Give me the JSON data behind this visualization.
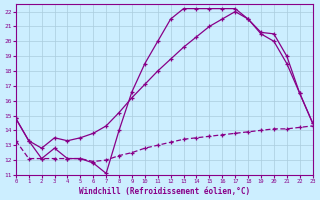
{
  "xlabel": "Windchill (Refroidissement éolien,°C)",
  "bg_color": "#cceeff",
  "grid_color": "#aaccdd",
  "line_color": "#880088",
  "xlim": [
    0,
    23
  ],
  "ylim": [
    11,
    22.5
  ],
  "xticks": [
    0,
    1,
    2,
    3,
    4,
    5,
    6,
    7,
    8,
    9,
    10,
    11,
    12,
    13,
    14,
    15,
    16,
    17,
    18,
    19,
    20,
    21,
    22,
    23
  ],
  "yticks": [
    11,
    12,
    13,
    14,
    15,
    16,
    17,
    18,
    19,
    20,
    21,
    22
  ],
  "line1_x": [
    0,
    1,
    2,
    3,
    4,
    5,
    6,
    7,
    8,
    9,
    10,
    11,
    12,
    13,
    14,
    15,
    16,
    17,
    18,
    19,
    20,
    21,
    22,
    23
  ],
  "line1_y": [
    14.8,
    13.3,
    12.1,
    12.8,
    12.1,
    12.1,
    11.8,
    11.1,
    14.0,
    16.6,
    18.5,
    20.0,
    21.5,
    22.2,
    22.2,
    22.2,
    22.2,
    22.2,
    21.5,
    20.6,
    20.5,
    19.0,
    16.5,
    14.5
  ],
  "line2_x": [
    0,
    1,
    2,
    3,
    4,
    5,
    6,
    7,
    8,
    9,
    10,
    11,
    12,
    13,
    14,
    15,
    16,
    17,
    18,
    19,
    20,
    21,
    22,
    23
  ],
  "line2_y": [
    14.8,
    13.3,
    12.8,
    13.5,
    13.3,
    13.5,
    13.8,
    14.3,
    15.2,
    16.2,
    17.1,
    18.0,
    18.8,
    19.6,
    20.3,
    21.0,
    21.5,
    22.0,
    21.5,
    20.5,
    20.0,
    18.5,
    16.5,
    14.5
  ],
  "line3_x": [
    0,
    1,
    2,
    3,
    4,
    5,
    6,
    7,
    8,
    9,
    10,
    11,
    12,
    13,
    14,
    15,
    16,
    17,
    18,
    19,
    20,
    21,
    22,
    23
  ],
  "line3_y": [
    13.3,
    12.1,
    12.1,
    12.1,
    12.1,
    12.1,
    11.9,
    12.0,
    12.3,
    12.5,
    12.8,
    13.0,
    13.2,
    13.4,
    13.5,
    13.6,
    13.7,
    13.8,
    13.9,
    14.0,
    14.1,
    14.1,
    14.2,
    14.3
  ]
}
